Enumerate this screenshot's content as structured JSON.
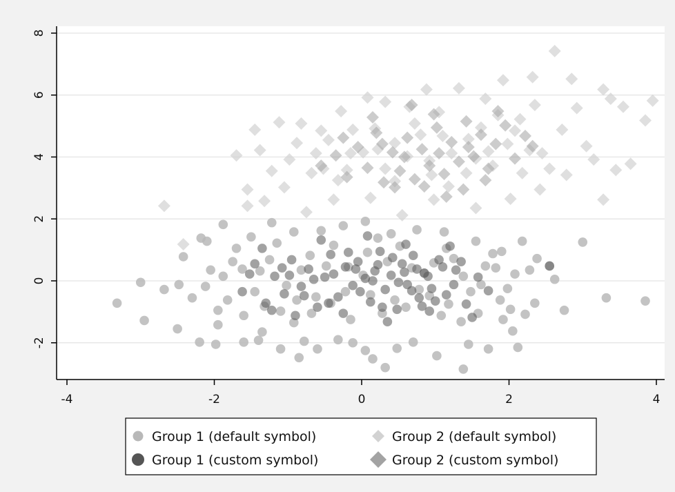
{
  "chart_data": {
    "type": "scatter",
    "xlim": [
      -4.2,
      4.2
    ],
    "ylim": [
      -3.2,
      8.4
    ],
    "x_ticks": [
      -4,
      -2,
      0,
      2,
      4
    ],
    "y_ticks": [
      -2,
      0,
      2,
      4,
      6,
      8
    ],
    "x_tick_labels": [
      "-4",
      "-2",
      "0",
      "2",
      "4"
    ],
    "y_tick_labels": [
      "-2",
      "0",
      "2",
      "4",
      "6",
      "8"
    ],
    "grid": "horizontal",
    "legend_placement": "bottom",
    "series": [
      {
        "name": "Group 1 (default symbol)",
        "marker": "circle",
        "color": "#b8b8b8",
        "points": [
          [
            -3.32,
            -0.72
          ],
          [
            -3.0,
            -0.05
          ],
          [
            -2.95,
            -1.28
          ],
          [
            -2.68,
            -0.28
          ],
          [
            -2.5,
            -1.55
          ],
          [
            -2.48,
            -0.12
          ],
          [
            -2.42,
            0.78
          ],
          [
            -2.2,
            -1.98
          ],
          [
            -2.18,
            1.38
          ],
          [
            -2.1,
            1.28
          ],
          [
            -1.98,
            -2.05
          ],
          [
            -1.95,
            -0.95
          ],
          [
            -1.88,
            1.82
          ],
          [
            -1.6,
            -1.98
          ],
          [
            -1.4,
            -1.92
          ],
          [
            -1.35,
            -1.65
          ],
          [
            -1.1,
            -2.2
          ],
          [
            -0.85,
            -2.48
          ],
          [
            -0.78,
            -1.95
          ],
          [
            -0.6,
            -2.2
          ],
          [
            -0.32,
            -1.9
          ],
          [
            -0.12,
            -2.0
          ],
          [
            0.05,
            -2.25
          ],
          [
            0.15,
            -2.52
          ],
          [
            0.32,
            -2.8
          ],
          [
            0.48,
            -2.18
          ],
          [
            0.7,
            -1.98
          ],
          [
            1.02,
            -2.42
          ],
          [
            1.38,
            -2.85
          ],
          [
            1.45,
            -2.05
          ],
          [
            1.72,
            -2.2
          ],
          [
            1.92,
            -1.25
          ],
          [
            2.05,
            -1.62
          ],
          [
            2.12,
            -2.15
          ],
          [
            2.35,
            -0.72
          ],
          [
            2.55,
            0.48
          ],
          [
            2.75,
            -0.95
          ],
          [
            3.0,
            1.25
          ],
          [
            3.32,
            -0.55
          ],
          [
            3.85,
            -0.65
          ],
          [
            -1.75,
            0.62
          ],
          [
            -1.5,
            1.42
          ],
          [
            -1.22,
            1.88
          ],
          [
            -0.92,
            1.58
          ],
          [
            -0.55,
            1.62
          ],
          [
            -0.25,
            1.78
          ],
          [
            0.05,
            1.92
          ],
          [
            0.4,
            1.52
          ],
          [
            0.75,
            1.65
          ],
          [
            1.12,
            1.58
          ],
          [
            1.55,
            1.28
          ],
          [
            1.9,
            0.95
          ],
          [
            2.18,
            1.28
          ],
          [
            2.38,
            0.72
          ],
          [
            2.62,
            0.05
          ],
          [
            -2.3,
            -0.55
          ],
          [
            -2.05,
            0.35
          ],
          [
            -1.82,
            -0.62
          ],
          [
            -1.6,
            -1.12
          ],
          [
            -1.38,
            0.32
          ],
          [
            -1.1,
            -0.98
          ],
          [
            -0.92,
            -1.35
          ],
          [
            -0.7,
            0.82
          ],
          [
            -0.42,
            -0.72
          ],
          [
            -0.18,
            0.45
          ],
          [
            0.12,
            -0.45
          ],
          [
            0.35,
            0.62
          ],
          [
            0.6,
            -0.85
          ],
          [
            0.85,
            0.25
          ],
          [
            1.08,
            -1.12
          ],
          [
            1.25,
            0.72
          ],
          [
            1.48,
            -0.35
          ],
          [
            1.68,
            0.48
          ],
          [
            1.88,
            -0.62
          ],
          [
            2.08,
            0.22
          ],
          [
            -1.95,
            -1.42
          ],
          [
            -1.7,
            1.05
          ],
          [
            -1.45,
            -0.35
          ],
          [
            -1.25,
            0.68
          ],
          [
            -1.02,
            -0.15
          ],
          [
            -0.82,
            0.35
          ],
          [
            -0.62,
            -0.52
          ],
          [
            -0.38,
            1.15
          ],
          [
            -0.15,
            -1.25
          ],
          [
            0.08,
            0.92
          ],
          [
            0.28,
            -1.05
          ],
          [
            0.52,
            1.12
          ],
          [
            0.78,
            -0.28
          ],
          [
            0.98,
            0.58
          ],
          [
            1.18,
            -0.75
          ],
          [
            1.38,
            0.15
          ],
          [
            1.58,
            -1.05
          ],
          [
            1.78,
            0.88
          ],
          [
            1.98,
            -0.25
          ],
          [
            2.22,
            -1.08
          ],
          [
            -2.12,
            -0.18
          ],
          [
            -1.88,
            0.15
          ],
          [
            -1.62,
            0.38
          ],
          [
            -1.32,
            -0.82
          ],
          [
            -1.15,
            1.22
          ],
          [
            -0.88,
            -0.62
          ],
          [
            -0.68,
            -1.05
          ],
          [
            -0.48,
            0.48
          ],
          [
            -0.22,
            -0.35
          ],
          [
            0.02,
            0.18
          ],
          [
            0.22,
            1.38
          ],
          [
            0.45,
            -0.62
          ],
          [
            0.68,
            0.42
          ],
          [
            0.92,
            -0.48
          ],
          [
            1.15,
            1.05
          ],
          [
            1.35,
            -1.32
          ],
          [
            1.62,
            -0.12
          ],
          [
            1.82,
            0.42
          ],
          [
            2.02,
            -0.92
          ],
          [
            2.28,
            0.35
          ]
        ]
      },
      {
        "name": "Group 1 (custom symbol)",
        "marker": "circle",
        "color": "#555555",
        "points": [
          [
            -1.62,
            -0.35
          ],
          [
            -1.45,
            0.55
          ],
          [
            -1.3,
            -0.72
          ],
          [
            -1.18,
            0.15
          ],
          [
            -1.05,
            -0.42
          ],
          [
            -0.95,
            0.68
          ],
          [
            -0.82,
            -0.18
          ],
          [
            -0.72,
            0.38
          ],
          [
            -0.6,
            -0.85
          ],
          [
            -0.5,
            0.12
          ],
          [
            -0.42,
            0.85
          ],
          [
            -0.32,
            -0.52
          ],
          [
            -0.22,
            0.45
          ],
          [
            -0.12,
            -0.15
          ],
          [
            -0.05,
            0.62
          ],
          [
            0.05,
            0.08
          ],
          [
            0.12,
            -0.68
          ],
          [
            0.18,
            0.32
          ],
          [
            0.25,
            0.95
          ],
          [
            0.32,
            -0.28
          ],
          [
            0.4,
            0.18
          ],
          [
            0.48,
            -0.92
          ],
          [
            0.55,
            0.55
          ],
          [
            0.62,
            -0.12
          ],
          [
            0.7,
            0.82
          ],
          [
            0.78,
            -0.55
          ],
          [
            0.85,
            0.25
          ],
          [
            0.95,
            -0.25
          ],
          [
            1.05,
            0.68
          ],
          [
            1.15,
            -0.45
          ],
          [
            1.28,
            0.35
          ],
          [
            1.42,
            -0.75
          ],
          [
            1.58,
            0.12
          ],
          [
            -1.35,
            1.05
          ],
          [
            -0.9,
            -1.12
          ],
          [
            -0.55,
            1.32
          ],
          [
            -0.25,
            -1.05
          ],
          [
            0.08,
            1.45
          ],
          [
            0.35,
            -1.32
          ],
          [
            0.6,
            1.18
          ],
          [
            0.92,
            -0.98
          ],
          [
            1.2,
            1.12
          ],
          [
            1.5,
            -1.18
          ],
          [
            -1.52,
            0.22
          ],
          [
            -1.08,
            0.42
          ],
          [
            -0.78,
            -0.48
          ],
          [
            -0.38,
            0.22
          ],
          [
            -0.02,
            -0.35
          ],
          [
            0.22,
            0.52
          ],
          [
            0.5,
            -0.05
          ],
          [
            0.75,
            0.38
          ],
          [
            1.0,
            -0.65
          ],
          [
            1.35,
            0.62
          ],
          [
            1.72,
            -0.32
          ],
          [
            2.55,
            0.48
          ],
          [
            -0.65,
            0.05
          ],
          [
            -0.18,
            0.92
          ],
          [
            0.15,
            0.0
          ],
          [
            0.42,
            0.75
          ],
          [
            0.68,
            -0.32
          ],
          [
            0.9,
            0.15
          ],
          [
            1.1,
            0.45
          ],
          [
            -1.22,
            -0.95
          ],
          [
            -0.45,
            -0.72
          ],
          [
            0.28,
            -0.85
          ],
          [
            0.82,
            -0.82
          ],
          [
            1.25,
            -0.12
          ],
          [
            -0.08,
            0.38
          ],
          [
            0.58,
            0.28
          ],
          [
            -0.98,
            0.18
          ]
        ]
      },
      {
        "name": "Group 2 (default symbol)",
        "marker": "diamond",
        "color": "#d2d2d2",
        "points": [
          [
            -2.68,
            2.42
          ],
          [
            -2.42,
            1.18
          ],
          [
            -1.7,
            4.05
          ],
          [
            -1.55,
            2.42
          ],
          [
            -1.55,
            2.95
          ],
          [
            -1.45,
            4.88
          ],
          [
            -1.38,
            4.22
          ],
          [
            -1.32,
            2.58
          ],
          [
            -1.12,
            5.12
          ],
          [
            -1.05,
            3.02
          ],
          [
            -0.88,
            4.45
          ],
          [
            -0.82,
            5.08
          ],
          [
            -0.75,
            2.22
          ],
          [
            -0.62,
            4.12
          ],
          [
            -0.52,
            3.62
          ],
          [
            -0.45,
            4.55
          ],
          [
            -0.38,
            2.62
          ],
          [
            -0.28,
            5.48
          ],
          [
            -0.2,
            3.58
          ],
          [
            -0.12,
            4.88
          ],
          [
            0.08,
            5.92
          ],
          [
            0.12,
            2.68
          ],
          [
            0.22,
            4.25
          ],
          [
            0.32,
            5.78
          ],
          [
            0.45,
            3.22
          ],
          [
            0.55,
            2.12
          ],
          [
            0.65,
            5.62
          ],
          [
            0.8,
            4.72
          ],
          [
            0.88,
            6.18
          ],
          [
            0.98,
            2.62
          ],
          [
            1.05,
            5.45
          ],
          [
            1.18,
            3.05
          ],
          [
            1.32,
            6.22
          ],
          [
            1.45,
            4.58
          ],
          [
            1.55,
            2.35
          ],
          [
            1.68,
            5.88
          ],
          [
            1.78,
            3.72
          ],
          [
            1.92,
            6.48
          ],
          [
            2.02,
            2.65
          ],
          [
            2.15,
            5.22
          ],
          [
            2.28,
            4.22
          ],
          [
            2.32,
            6.58
          ],
          [
            2.42,
            2.95
          ],
          [
            2.55,
            3.62
          ],
          [
            2.62,
            7.42
          ],
          [
            2.78,
            3.42
          ],
          [
            2.85,
            6.52
          ],
          [
            2.92,
            5.58
          ],
          [
            3.05,
            4.35
          ],
          [
            3.15,
            3.92
          ],
          [
            3.28,
            6.18
          ],
          [
            3.28,
            2.62
          ],
          [
            3.38,
            5.88
          ],
          [
            3.45,
            3.58
          ],
          [
            3.55,
            5.62
          ],
          [
            3.65,
            3.78
          ],
          [
            3.85,
            5.18
          ],
          [
            3.95,
            5.82
          ],
          [
            2.72,
            4.88
          ],
          [
            2.45,
            4.12
          ],
          [
            1.98,
            4.42
          ],
          [
            1.62,
            4.95
          ],
          [
            1.22,
            4.12
          ],
          [
            0.92,
            3.88
          ],
          [
            0.62,
            4.02
          ],
          [
            0.32,
            3.62
          ],
          [
            0.02,
            4.15
          ],
          [
            -0.32,
            3.25
          ],
          [
            -0.68,
            3.48
          ],
          [
            -0.98,
            3.92
          ],
          [
            -1.22,
            3.55
          ],
          [
            1.42,
            3.48
          ],
          [
            1.85,
            5.35
          ],
          [
            2.18,
            3.48
          ],
          [
            0.72,
            5.08
          ],
          [
            0.18,
            4.92
          ],
          [
            -0.55,
            4.85
          ],
          [
            1.1,
            4.68
          ],
          [
            1.72,
            4.18
          ],
          [
            2.35,
            5.68
          ],
          [
            0.45,
            4.45
          ],
          [
            -0.15,
            4.12
          ],
          [
            0.95,
            3.42
          ],
          [
            1.55,
            3.95
          ],
          [
            2.08,
            4.85
          ]
        ]
      },
      {
        "name": "Group 2 (custom symbol)",
        "marker": "diamond",
        "color": "#a3a3a3",
        "points": [
          [
            -0.55,
            3.72
          ],
          [
            -0.35,
            4.05
          ],
          [
            -0.2,
            3.35
          ],
          [
            -0.05,
            4.32
          ],
          [
            0.08,
            3.65
          ],
          [
            0.2,
            4.78
          ],
          [
            0.3,
            3.18
          ],
          [
            0.42,
            4.15
          ],
          [
            0.52,
            3.55
          ],
          [
            0.62,
            4.62
          ],
          [
            0.72,
            3.28
          ],
          [
            0.82,
            4.25
          ],
          [
            0.92,
            3.72
          ],
          [
            1.02,
            4.95
          ],
          [
            1.12,
            3.45
          ],
          [
            1.22,
            4.48
          ],
          [
            1.32,
            3.85
          ],
          [
            1.42,
            5.15
          ],
          [
            1.52,
            4.02
          ],
          [
            1.62,
            4.72
          ],
          [
            1.72,
            3.62
          ],
          [
            1.82,
            4.42
          ],
          [
            1.95,
            5.02
          ],
          [
            2.08,
            3.95
          ],
          [
            2.22,
            4.68
          ],
          [
            0.45,
            3.02
          ],
          [
            0.98,
            5.38
          ],
          [
            1.38,
            2.95
          ],
          [
            1.85,
            5.48
          ],
          [
            0.15,
            5.28
          ],
          [
            -0.25,
            4.62
          ],
          [
            0.68,
            5.68
          ],
          [
            1.15,
            2.72
          ],
          [
            2.32,
            4.35
          ],
          [
            0.58,
            4.0
          ],
          [
            1.05,
            4.12
          ],
          [
            1.45,
            4.32
          ],
          [
            0.28,
            4.42
          ],
          [
            0.85,
            3.05
          ],
          [
            1.68,
            3.25
          ]
        ]
      }
    ]
  }
}
